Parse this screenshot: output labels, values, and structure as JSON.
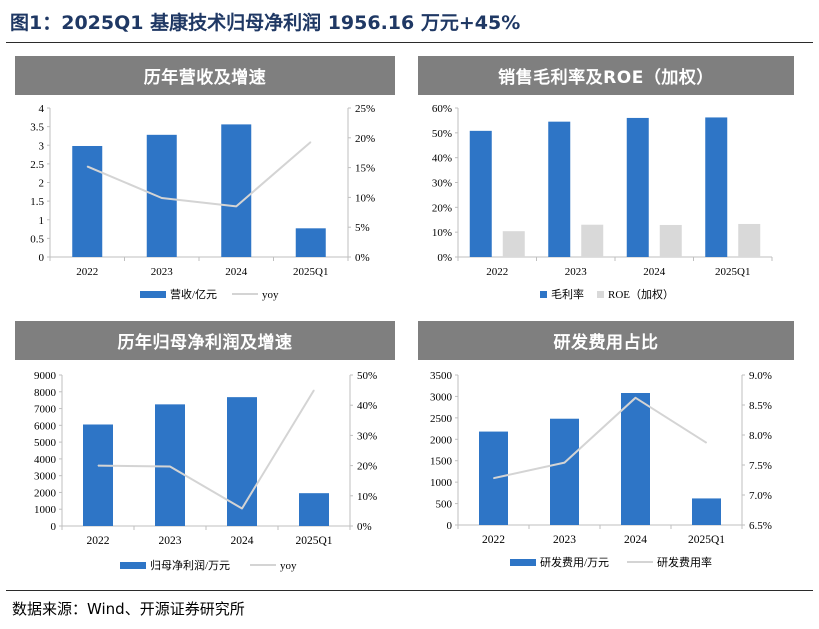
{
  "figure": {
    "title": "图1：2025Q1 基康技术归母净利润 1956.16 万元+45%",
    "source": "数据来源：Wind、开源证券研究所"
  },
  "colors": {
    "bar_blue": "#2e75c6",
    "bar_gray": "#d9d9d9",
    "line_gray": "#d4d4d4",
    "header_gray": "#7f7f7f",
    "title_blue": "#1f3864"
  },
  "chart_data": [
    {
      "id": "revenue",
      "type": "bar",
      "title": "历年营收及增速",
      "categories": [
        "2022",
        "2023",
        "2024",
        "2025Q1"
      ],
      "series": [
        {
          "name": "营收/亿元",
          "type": "bar",
          "axis": "left",
          "values": [
            2.98,
            3.28,
            3.56,
            0.77
          ]
        },
        {
          "name": "yoy",
          "type": "line",
          "axis": "right",
          "values": [
            15.2,
            9.9,
            8.5,
            19.3
          ]
        }
      ],
      "ylim_left": [
        0,
        4
      ],
      "yticks_left": [
        "0",
        "0.5",
        "1",
        "1.5",
        "2",
        "2.5",
        "3",
        "3.5",
        "4"
      ],
      "ylim_right": [
        0,
        25
      ],
      "yticks_right": [
        "0%",
        "5%",
        "10%",
        "15%",
        "20%",
        "25%"
      ],
      "legend": "bottom"
    },
    {
      "id": "margin",
      "type": "bar",
      "title": "销售毛利率及ROE（加权）",
      "categories": [
        "2022",
        "2023",
        "2024",
        "2025Q1"
      ],
      "series": [
        {
          "name": "毛利率",
          "type": "bar",
          "axis": "left",
          "values": [
            50.8,
            54.5,
            56.0,
            56.2
          ]
        },
        {
          "name": "ROE（加权）",
          "type": "bar",
          "axis": "left",
          "values": [
            10.4,
            13.0,
            12.9,
            13.3
          ]
        }
      ],
      "ylim_left": [
        0,
        60
      ],
      "yticks_left": [
        "0%",
        "10%",
        "20%",
        "30%",
        "40%",
        "50%",
        "60%"
      ],
      "legend": "bottom"
    },
    {
      "id": "net_profit",
      "type": "bar",
      "title": "历年归母净利润及增速",
      "categories": [
        "2022",
        "2023",
        "2024",
        "2025Q1"
      ],
      "series": [
        {
          "name": "归母净利润/万元",
          "type": "bar",
          "axis": "left",
          "values": [
            6050,
            7250,
            7680,
            1956.16
          ]
        },
        {
          "name": "yoy",
          "type": "line",
          "axis": "right",
          "values": [
            20.0,
            19.7,
            5.8,
            45.0
          ]
        }
      ],
      "ylim_left": [
        0,
        9000
      ],
      "yticks_left": [
        "0",
        "1000",
        "2000",
        "3000",
        "4000",
        "5000",
        "6000",
        "7000",
        "8000",
        "9000"
      ],
      "ylim_right": [
        0,
        50
      ],
      "yticks_right": [
        "0%",
        "10%",
        "20%",
        "30%",
        "40%",
        "50%"
      ],
      "legend": "bottom"
    },
    {
      "id": "rnd",
      "type": "bar",
      "title": "研发费用占比",
      "categories": [
        "2022",
        "2023",
        "2024",
        "2025Q1"
      ],
      "series": [
        {
          "name": "研发费用/万元",
          "type": "bar",
          "axis": "left",
          "values": [
            2180,
            2480,
            3080,
            620
          ]
        },
        {
          "name": "研发费用率",
          "type": "line",
          "axis": "right",
          "values": [
            7.28,
            7.54,
            8.62,
            7.87
          ]
        }
      ],
      "ylim_left": [
        0,
        3500
      ],
      "yticks_left": [
        "0",
        "500",
        "1000",
        "1500",
        "2000",
        "2500",
        "3000",
        "3500"
      ],
      "ylim_right": [
        6.5,
        9.0
      ],
      "yticks_right": [
        "6.5%",
        "7.0%",
        "7.5%",
        "8.0%",
        "8.5%",
        "9.0%"
      ],
      "legend": "bottom"
    }
  ]
}
